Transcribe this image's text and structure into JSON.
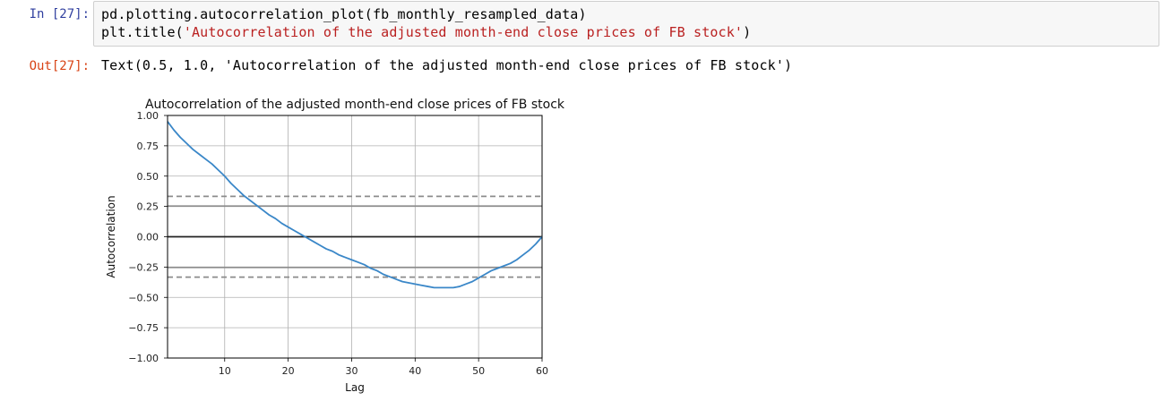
{
  "cell": {
    "in_prompt": "In [27]:",
    "out_prompt": "Out[27]:",
    "code_line1": "pd.plotting.autocorrelation_plot(fb_monthly_resampled_data)",
    "code_line2_prefix": "plt.title(",
    "code_line2_string": "'Autocorrelation of the adjusted month-end close prices of FB stock'",
    "code_line2_suffix": ")",
    "output_text": "Text(0.5, 1.0, 'Autocorrelation of the adjusted month-end close prices of FB stock')"
  },
  "chart_data": {
    "type": "line",
    "title": "Autocorrelation of the adjusted month-end close prices of FB stock",
    "xlabel": "Lag",
    "ylabel": "Autocorrelation",
    "xlim": [
      1,
      60
    ],
    "ylim": [
      -1.0,
      1.0
    ],
    "xticks": [
      10,
      20,
      30,
      40,
      50,
      60
    ],
    "yticks": [
      1.0,
      0.75,
      0.5,
      0.25,
      0.0,
      -0.25,
      -0.5,
      -0.75,
      -1.0
    ],
    "ytick_labels": [
      "1.00",
      "0.75",
      "0.50",
      "0.25",
      "0.00",
      "−0.25",
      "−0.50",
      "−0.75",
      "−1.00"
    ],
    "xtick_labels": [
      "10",
      "20",
      "30",
      "40",
      "50",
      "60"
    ],
    "grid": true,
    "confidence_lines": {
      "solid": [
        0.253,
        -0.253
      ],
      "dashed": [
        0.333,
        -0.333
      ],
      "zero": 0.0
    },
    "line_color": "#3a87c8",
    "series": [
      {
        "x": [
          1,
          2,
          3,
          4,
          5,
          6,
          7,
          8,
          9,
          10,
          11,
          12,
          13,
          14,
          15,
          16,
          17,
          18,
          19,
          20,
          21,
          22,
          23,
          24,
          25,
          26,
          27,
          28,
          29,
          30,
          31,
          32,
          33,
          34,
          35,
          36,
          37,
          38,
          39,
          40,
          41,
          42,
          43,
          44,
          45,
          46,
          47,
          48,
          49,
          50,
          51,
          52,
          53,
          54,
          55,
          56,
          57,
          58,
          59,
          60
        ],
        "values": [
          0.95,
          0.88,
          0.82,
          0.77,
          0.72,
          0.68,
          0.64,
          0.6,
          0.55,
          0.5,
          0.44,
          0.39,
          0.34,
          0.3,
          0.26,
          0.22,
          0.18,
          0.15,
          0.11,
          0.08,
          0.05,
          0.02,
          -0.01,
          -0.04,
          -0.07,
          -0.1,
          -0.12,
          -0.15,
          -0.17,
          -0.19,
          -0.21,
          -0.23,
          -0.26,
          -0.28,
          -0.31,
          -0.33,
          -0.35,
          -0.37,
          -0.38,
          -0.39,
          -0.4,
          -0.41,
          -0.42,
          -0.42,
          -0.42,
          -0.42,
          -0.41,
          -0.39,
          -0.37,
          -0.34,
          -0.31,
          -0.28,
          -0.26,
          -0.24,
          -0.22,
          -0.19,
          -0.15,
          -0.11,
          -0.06,
          0.0
        ]
      }
    ]
  }
}
